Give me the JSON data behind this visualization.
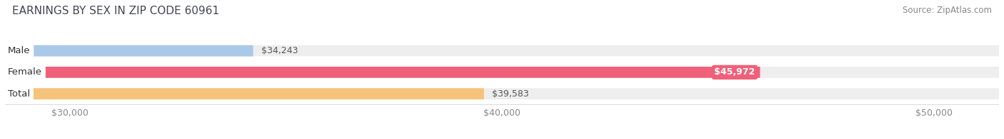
{
  "title": "EARNINGS BY SEX IN ZIP CODE 60961",
  "source": "Source: ZipAtlas.com",
  "categories": [
    "Male",
    "Female",
    "Total"
  ],
  "values": [
    34243,
    45972,
    39583
  ],
  "bar_colors": [
    "#aac8e8",
    "#f0607a",
    "#f5c37a"
  ],
  "bar_labels": [
    "$34,243",
    "$45,972",
    "$39,583"
  ],
  "label_inside": [
    false,
    true,
    false
  ],
  "x_min": 28500,
  "x_max": 51500,
  "x_ticks": [
    30000,
    40000,
    50000
  ],
  "x_tick_labels": [
    "$30,000",
    "$40,000",
    "$50,000"
  ],
  "background_color": "#ffffff",
  "bar_background_color": "#eeeeee",
  "title_fontsize": 11,
  "source_fontsize": 8.5,
  "label_fontsize": 9,
  "tick_fontsize": 9,
  "cat_fontsize": 9.5
}
